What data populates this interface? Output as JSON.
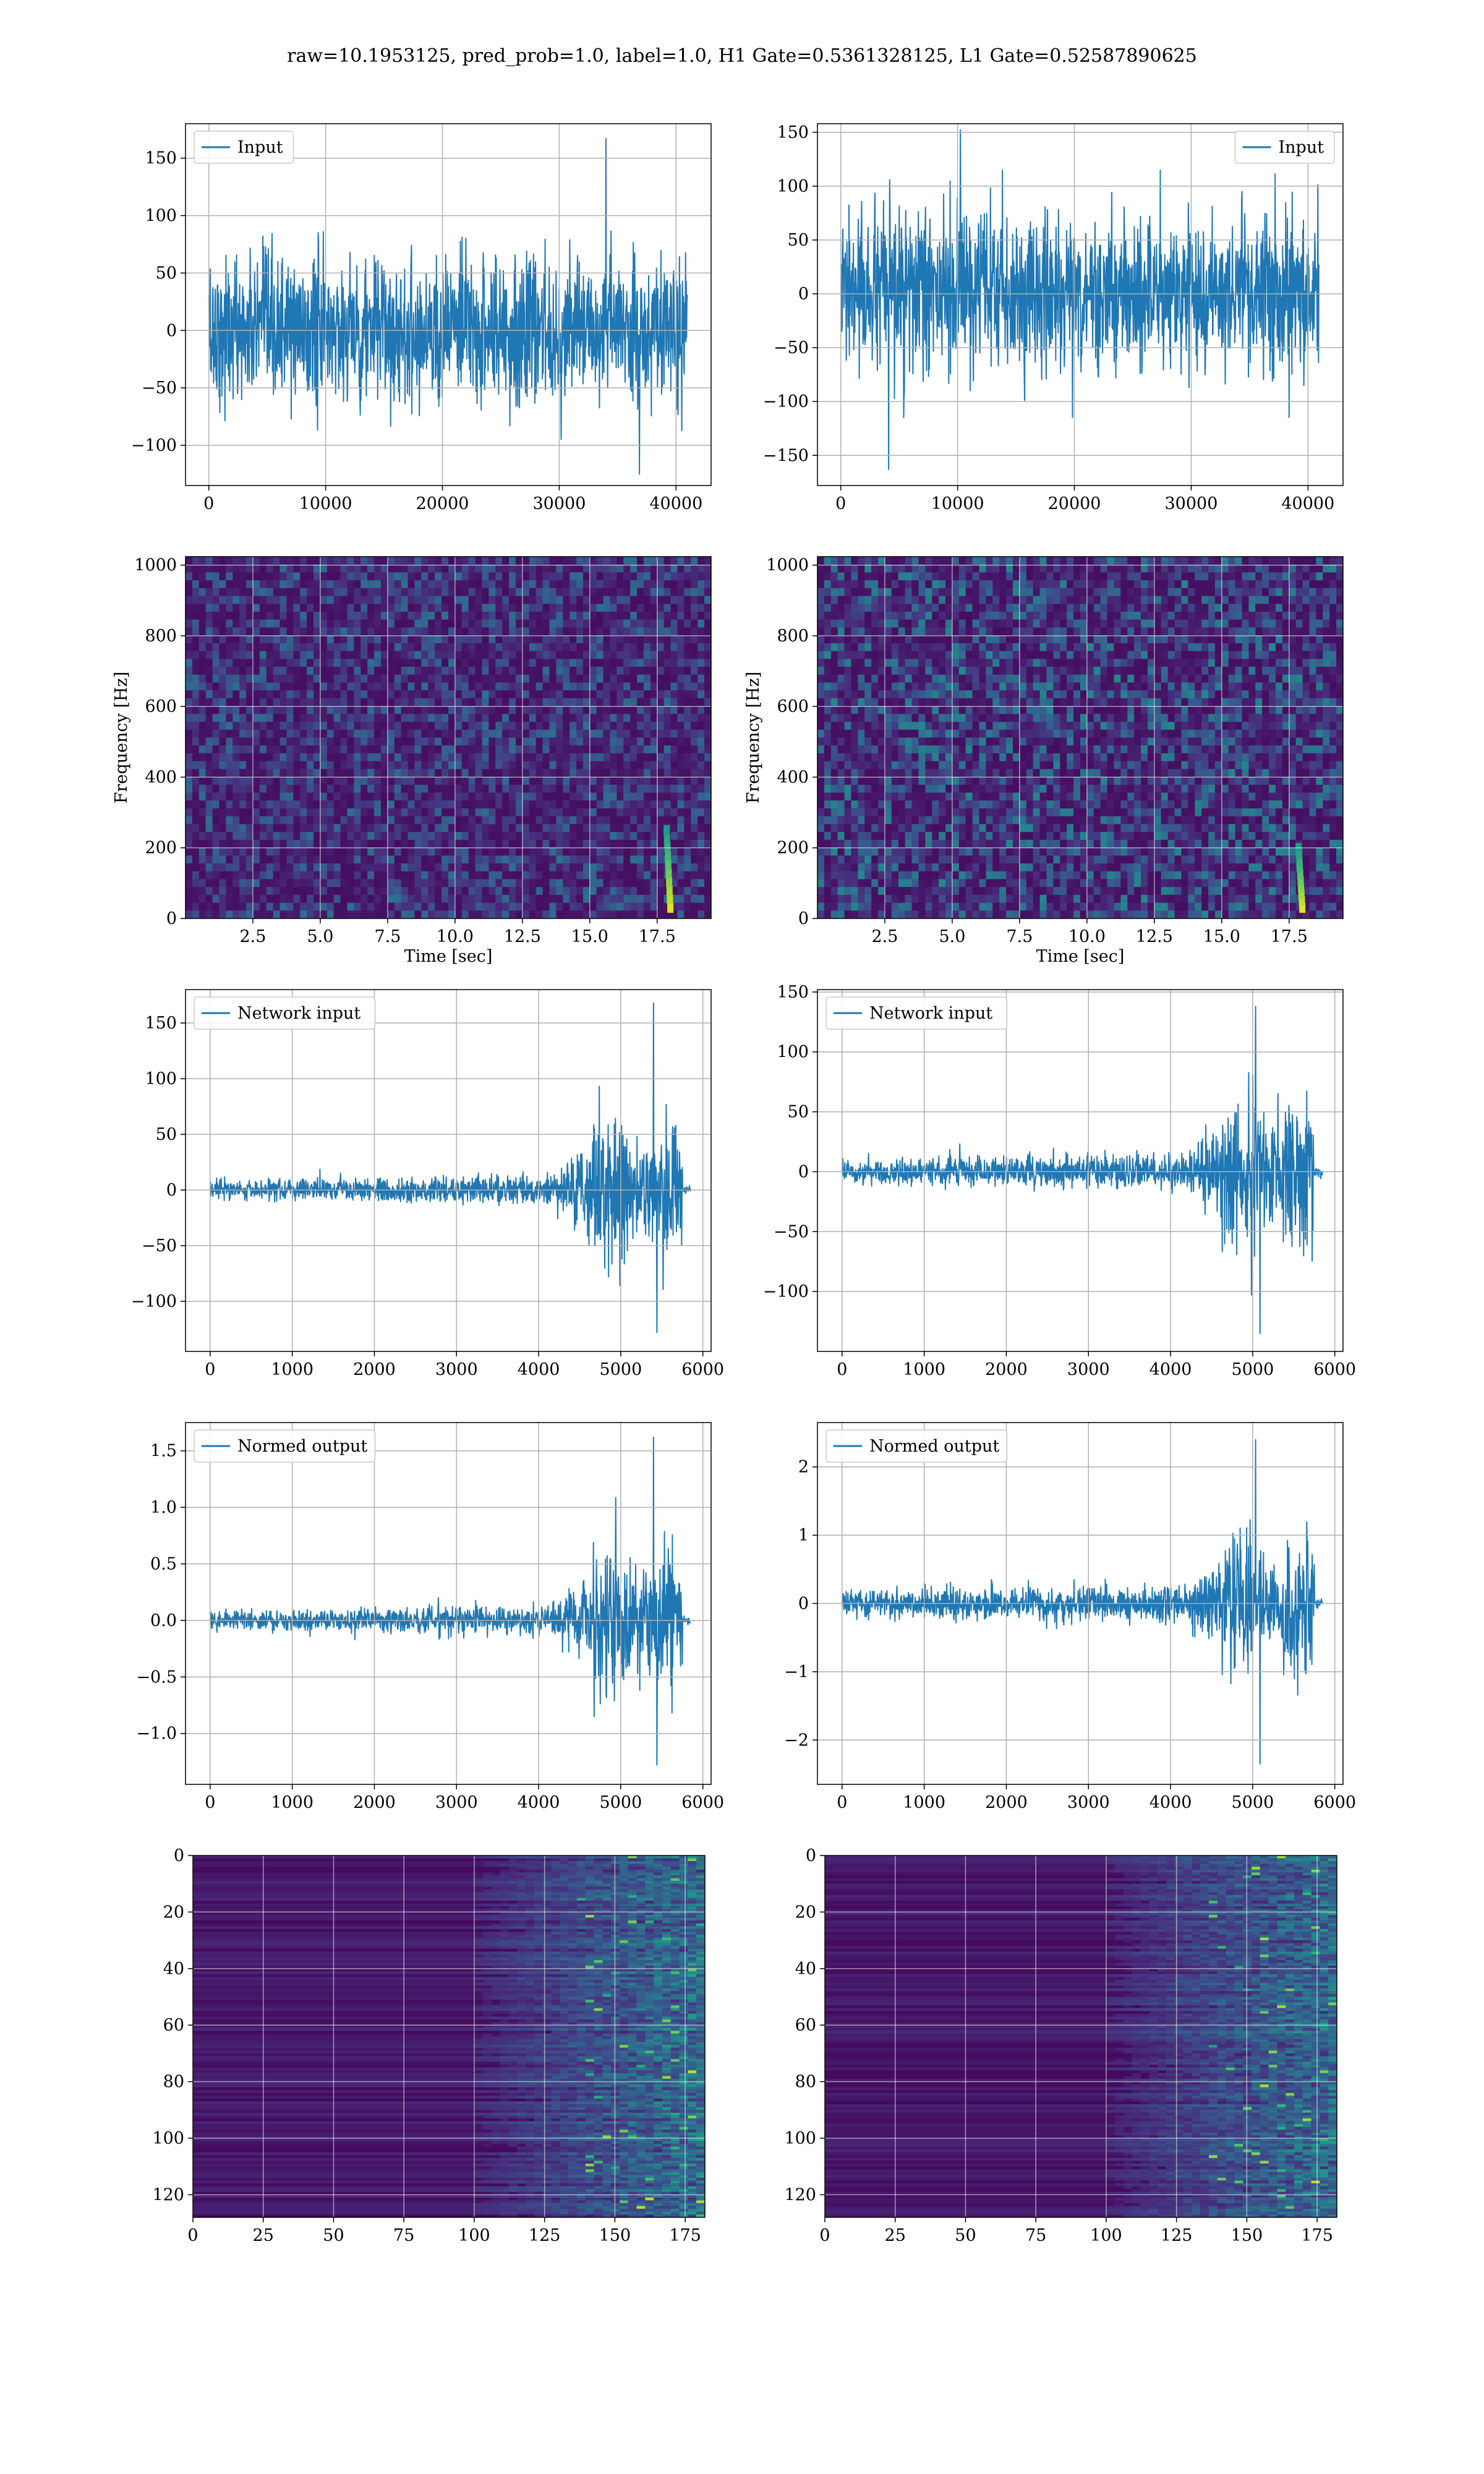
{
  "suptitle": "raw=10.1953125, pred_prob=1.0, label=1.0, H1 Gate=0.5361328125, L1 Gate=0.52587890625",
  "colors": {
    "line": "#1f77b4",
    "grid": "#b0b0b0",
    "viridis_dark": "#440154"
  },
  "chart_data": [
    {
      "id": "input-h1",
      "type": "line",
      "title": "",
      "xlabel": "",
      "ylabel": "",
      "legend": {
        "label": "Input",
        "loc": "upper-left"
      },
      "xlim": [
        -2000,
        43000
      ],
      "ylim": [
        -135,
        180
      ],
      "xticks": [
        0,
        10000,
        20000,
        30000,
        40000
      ],
      "yticks": [
        -100,
        -50,
        0,
        50,
        100,
        150
      ],
      "series": [
        {
          "name": "Input",
          "x_range": [
            0,
            40960
          ],
          "envelope": {
            "core": 75,
            "max_peak": 167,
            "min_peak": -125
          }
        }
      ]
    },
    {
      "id": "input-l1",
      "type": "line",
      "title": "",
      "xlabel": "",
      "ylabel": "",
      "legend": {
        "label": "Input",
        "loc": "upper-right"
      },
      "xlim": [
        -2000,
        43000
      ],
      "ylim": [
        -178,
        158
      ],
      "xticks": [
        0,
        10000,
        20000,
        30000,
        40000
      ],
      "yticks": [
        -150,
        -100,
        -50,
        0,
        50,
        100,
        150
      ],
      "series": [
        {
          "name": "Input",
          "x_range": [
            0,
            40960
          ],
          "envelope": {
            "core": 85,
            "max_peak": 152,
            "min_peak": -163
          }
        }
      ]
    },
    {
      "id": "spec-h1",
      "type": "heatmap",
      "title": "",
      "xlabel": "Time [sec]",
      "ylabel": "Frequency [Hz]",
      "xlim": [
        0,
        19.5
      ],
      "ylim": [
        0,
        1024
      ],
      "xticks": [
        2.5,
        5.0,
        7.5,
        10.0,
        12.5,
        15.0,
        17.5
      ],
      "yticks": [
        0,
        200,
        400,
        600,
        800,
        1000
      ],
      "colormap": "viridis",
      "chirp": {
        "time": 18.2,
        "freq_range": [
          30,
          250
        ]
      }
    },
    {
      "id": "spec-l1",
      "type": "heatmap",
      "title": "",
      "xlabel": "Time [sec]",
      "ylabel": "Frequency [Hz]",
      "xlim": [
        0,
        19.5
      ],
      "ylim": [
        0,
        1024
      ],
      "xticks": [
        2.5,
        5.0,
        7.5,
        10.0,
        12.5,
        15.0,
        17.5
      ],
      "yticks": [
        0,
        200,
        400,
        600,
        800,
        1000
      ],
      "colormap": "viridis",
      "chirp": {
        "time": 18.2,
        "freq_range": [
          30,
          200
        ]
      }
    },
    {
      "id": "netin-h1",
      "type": "line",
      "title": "",
      "xlabel": "",
      "ylabel": "",
      "legend": {
        "label": "Network input",
        "loc": "upper-left"
      },
      "xlim": [
        -300,
        6100
      ],
      "ylim": [
        -145,
        180
      ],
      "xticks": [
        0,
        1000,
        2000,
        3000,
        4000,
        5000,
        6000
      ],
      "yticks": [
        -100,
        -50,
        0,
        50,
        100,
        150
      ],
      "series": [
        {
          "name": "Network input",
          "x_range": [
            0,
            5850
          ],
          "envelope": {
            "base": 10,
            "burst_start": 4650,
            "burst_end": 5750,
            "burst_amp": 70,
            "max_peak": 168,
            "min_peak": -128
          }
        }
      ]
    },
    {
      "id": "netin-l1",
      "type": "line",
      "title": "",
      "xlabel": "",
      "ylabel": "",
      "legend": {
        "label": "Network input",
        "loc": "upper-left"
      },
      "xlim": [
        -300,
        6100
      ],
      "ylim": [
        -150,
        152
      ],
      "xticks": [
        0,
        1000,
        2000,
        3000,
        4000,
        5000,
        6000
      ],
      "yticks": [
        -100,
        -50,
        0,
        50,
        100,
        150
      ],
      "series": [
        {
          "name": "Network input",
          "x_range": [
            0,
            5850
          ],
          "envelope": {
            "base": 12,
            "burst_start": 4650,
            "burst_end": 5750,
            "burst_amp": 65,
            "max_peak": 138,
            "min_peak": -135
          }
        }
      ]
    },
    {
      "id": "normed-h1",
      "type": "line",
      "title": "",
      "xlabel": "",
      "ylabel": "",
      "legend": {
        "label": "Normed output",
        "loc": "upper-left"
      },
      "xlim": [
        -300,
        6100
      ],
      "ylim": [
        -1.45,
        1.75
      ],
      "xticks": [
        0,
        1000,
        2000,
        3000,
        4000,
        5000,
        6000
      ],
      "yticks": [
        -1.0,
        -0.5,
        0.0,
        0.5,
        1.0,
        1.5
      ],
      "series": [
        {
          "name": "Normed output",
          "x_range": [
            0,
            5850
          ],
          "envelope": {
            "base": 0.1,
            "burst_start": 4650,
            "burst_end": 5750,
            "burst_amp": 0.7,
            "max_peak": 1.62,
            "min_peak": -1.28
          }
        }
      ]
    },
    {
      "id": "normed-l1",
      "type": "line",
      "title": "",
      "xlabel": "",
      "ylabel": "",
      "legend": {
        "label": "Normed output",
        "loc": "upper-left"
      },
      "xlim": [
        -300,
        6100
      ],
      "ylim": [
        -2.65,
        2.65
      ],
      "xticks": [
        0,
        1000,
        2000,
        3000,
        4000,
        5000,
        6000
      ],
      "yticks": [
        -2,
        -1,
        0,
        1,
        2
      ],
      "series": [
        {
          "name": "Normed output",
          "x_range": [
            0,
            5850
          ],
          "envelope": {
            "base": 0.22,
            "burst_start": 4650,
            "burst_end": 5750,
            "burst_amp": 1.1,
            "max_peak": 2.4,
            "min_peak": -2.35
          }
        }
      ]
    },
    {
      "id": "feat-h1",
      "type": "heatmap",
      "title": "",
      "xlabel": "",
      "ylabel": "",
      "xlim": [
        0,
        182
      ],
      "ylim": [
        128,
        0
      ],
      "xticks": [
        0,
        25,
        50,
        75,
        100,
        125,
        150,
        175
      ],
      "yticks": [
        0,
        20,
        40,
        60,
        80,
        100,
        120
      ],
      "colormap": "viridis",
      "active_from": 125
    },
    {
      "id": "feat-l1",
      "type": "heatmap",
      "title": "",
      "xlabel": "",
      "ylabel": "",
      "xlim": [
        0,
        182
      ],
      "ylim": [
        128,
        0
      ],
      "xticks": [
        0,
        25,
        50,
        75,
        100,
        125,
        150,
        175
      ],
      "yticks": [
        0,
        20,
        40,
        60,
        80,
        100,
        120
      ],
      "colormap": "viridis",
      "active_from": 125
    }
  ]
}
